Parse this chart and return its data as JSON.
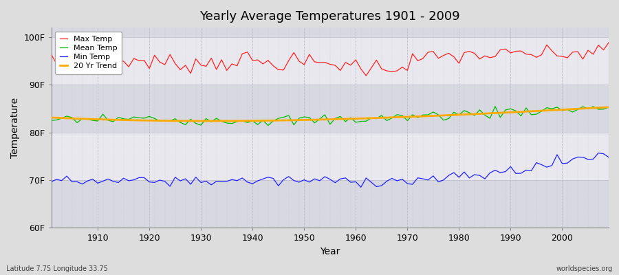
{
  "title": "Yearly Average Temperatures 1901 - 2009",
  "xlabel": "Year",
  "ylabel": "Temperature",
  "start_year": 1901,
  "end_year": 2009,
  "ylim": [
    60,
    102
  ],
  "yticks": [
    60,
    70,
    80,
    90,
    100
  ],
  "ytick_labels": [
    "60F",
    "70F",
    "80F",
    "90F",
    "100F"
  ],
  "xtick_years": [
    1910,
    1920,
    1930,
    1940,
    1950,
    1960,
    1970,
    1980,
    1990,
    2000
  ],
  "line_colors": {
    "max": "#ff2222",
    "mean": "#00bb00",
    "min": "#2222ff",
    "trend": "#ffaa00"
  },
  "legend_labels": [
    "Max Temp",
    "Mean Temp",
    "Min Temp",
    "20 Yr Trend"
  ],
  "bg_color": "#dddddd",
  "plot_bg_color": "#e0e0e8",
  "band_color_light": "#e8e8ee",
  "band_color_dark": "#d8d8e0",
  "grid_color": "#bbbbcc",
  "footer_left": "Latitude 7.75 Longitude 33.75",
  "footer_right": "worldspecies.org",
  "max_base": 94.8,
  "mean_base": 82.8,
  "min_base": 70.1
}
